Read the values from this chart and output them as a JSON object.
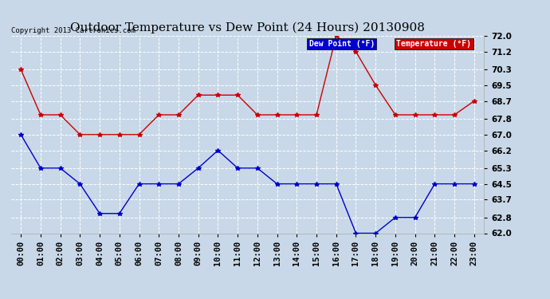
{
  "title": "Outdoor Temperature vs Dew Point (24 Hours) 20130908",
  "copyright": "Copyright 2013 Cartronics.com",
  "background_color": "#c8d8e8",
  "plot_bg_color": "#c8d8e8",
  "grid_color": "#ffffff",
  "hours": [
    "00:00",
    "01:00",
    "02:00",
    "03:00",
    "04:00",
    "05:00",
    "06:00",
    "07:00",
    "08:00",
    "09:00",
    "10:00",
    "11:00",
    "12:00",
    "13:00",
    "14:00",
    "15:00",
    "16:00",
    "17:00",
    "18:00",
    "19:00",
    "20:00",
    "21:00",
    "22:00",
    "23:00"
  ],
  "temperature": [
    70.3,
    68.0,
    68.0,
    67.0,
    67.0,
    67.0,
    67.0,
    68.0,
    68.0,
    69.0,
    69.0,
    69.0,
    68.0,
    68.0,
    68.0,
    68.0,
    72.0,
    71.2,
    69.5,
    68.0,
    68.0,
    68.0,
    68.0,
    68.7
  ],
  "dewpoint": [
    67.0,
    65.3,
    65.3,
    64.5,
    63.0,
    63.0,
    64.5,
    64.5,
    64.5,
    65.3,
    66.2,
    65.3,
    65.3,
    64.5,
    64.5,
    64.5,
    64.5,
    62.0,
    62.0,
    62.8,
    62.8,
    64.5,
    64.5,
    64.5
  ],
  "temp_color": "#cc0000",
  "dew_color": "#0000cc",
  "ylim_min": 62.0,
  "ylim_max": 72.0,
  "yticks": [
    62.0,
    62.8,
    63.7,
    64.5,
    65.3,
    66.2,
    67.0,
    67.8,
    68.7,
    69.5,
    70.3,
    71.2,
    72.0
  ],
  "legend_dew_label": "Dew Point (°F)",
  "legend_temp_label": "Temperature (°F)",
  "legend_dew_bg": "#0000cc",
  "legend_temp_bg": "#cc0000",
  "title_fontsize": 11,
  "tick_fontsize": 7.5,
  "copyright_fontsize": 6.5,
  "marker": "*",
  "marker_size": 4,
  "linewidth": 1.0
}
